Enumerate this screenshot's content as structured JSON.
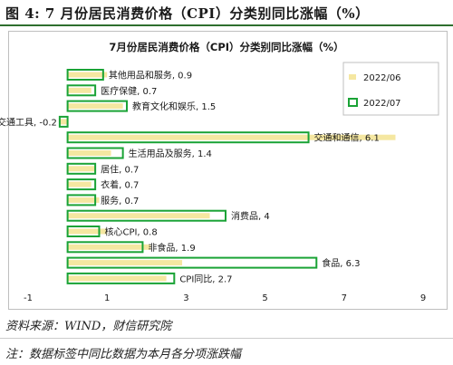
{
  "figure": {
    "title": "图 4: 7 月份居民消费价格（CPI）分类别同比涨幅（%）",
    "source": "资料来源：WIND，财信研究院",
    "note": "注：数据标签中同比数据为本月各分项涨跌幅"
  },
  "chart_data": {
    "type": "bar",
    "orientation": "horizontal",
    "title": "7月份居民消费价格（CPI）分类别同比涨幅（%）",
    "categories": [
      "其他用品和服务",
      "医疗保健",
      "教育文化和娱乐",
      "交通工具",
      "交通和通信",
      "生活用品及服务",
      "居住",
      "衣着",
      "服务",
      "消费品",
      "核心CPI",
      "非食品",
      "食品",
      "CPI同比"
    ],
    "series": [
      {
        "name": "2022/06",
        "style": "filled",
        "color": "#f5e7a1",
        "values": [
          1.0,
          0.6,
          1.4,
          -0.2,
          8.3,
          1.1,
          0.7,
          0.6,
          0.8,
          3.6,
          1.0,
          2.1,
          2.9,
          2.5
        ]
      },
      {
        "name": "2022/07",
        "style": "outline",
        "color": "#1aa336",
        "values": [
          0.9,
          0.7,
          1.5,
          -0.2,
          6.1,
          1.4,
          0.7,
          0.7,
          0.7,
          4.0,
          0.8,
          1.9,
          6.3,
          2.7
        ]
      }
    ],
    "data_labels": [
      "其他用品和服务, 0.9",
      "医疗保健, 0.7",
      "教育文化和娱乐, 1.5",
      "交通工具, -0.2",
      "交通和通信, 6.1",
      "生活用品及服务, 1.4",
      "居住, 0.7",
      "衣着, 0.7",
      "服务, 0.7",
      "消费品, 4",
      "核心CPI, 0.8",
      "非食品, 1.9",
      "食品, 6.3",
      "CPI同比, 2.7"
    ],
    "xlim": [
      -1,
      9
    ],
    "xticks": [
      "-1",
      "1",
      "3",
      "5",
      "7",
      "9"
    ],
    "legend_position": "top-right",
    "grid": false
  }
}
